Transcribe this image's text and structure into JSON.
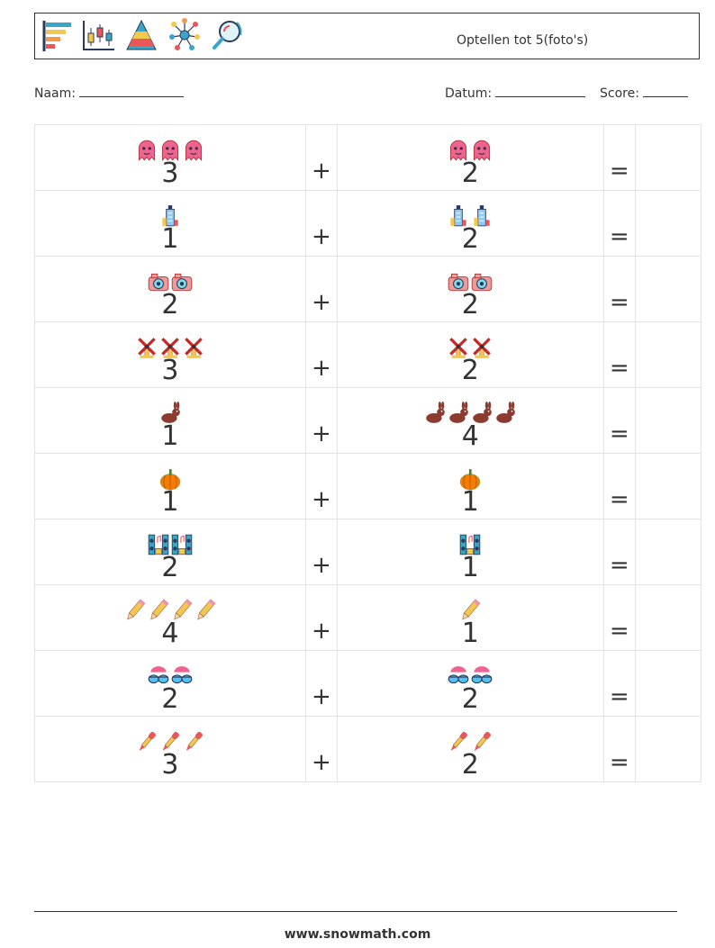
{
  "header": {
    "title": "Optellen tot 5(foto's)",
    "icons": [
      "bar-chart-icon",
      "candlestick-chart-icon",
      "pyramid-chart-icon",
      "network-icon",
      "magnifier-icon"
    ]
  },
  "meta": {
    "name_label": "Naam:",
    "date_label": "Datum:",
    "score_label": "Score:"
  },
  "symbols": {
    "plus": "+",
    "equals": "="
  },
  "problems": [
    {
      "pic": "ghost",
      "a": "3",
      "b": "2"
    },
    {
      "pic": "building",
      "a": "1",
      "b": "2"
    },
    {
      "pic": "camera",
      "a": "2",
      "b": "2"
    },
    {
      "pic": "windmill",
      "a": "3",
      "b": "2"
    },
    {
      "pic": "rabbit",
      "a": "1",
      "b": "4"
    },
    {
      "pic": "pumpkin",
      "a": "1",
      "b": "1"
    },
    {
      "pic": "speakers",
      "a": "2",
      "b": "1"
    },
    {
      "pic": "pencil",
      "a": "4",
      "b": "1"
    },
    {
      "pic": "sunglasses",
      "a": "2",
      "b": "2"
    },
    {
      "pic": "dropper",
      "a": "3",
      "b": "2"
    }
  ],
  "footer": {
    "url": "www.snowmath.com"
  }
}
